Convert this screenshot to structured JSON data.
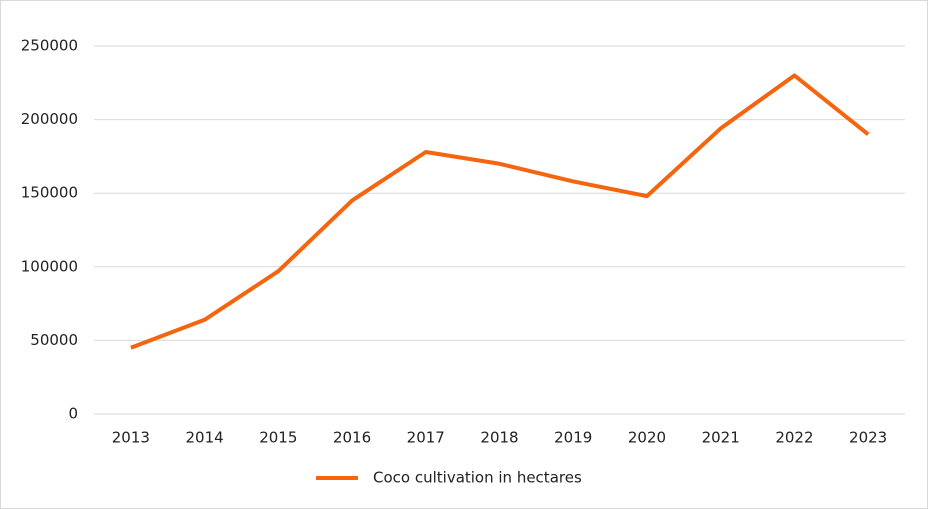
{
  "chart_data": {
    "type": "line",
    "categories": [
      "2013",
      "2014",
      "2015",
      "2016",
      "2017",
      "2018",
      "2019",
      "2020",
      "2021",
      "2022",
      "2023"
    ],
    "series": [
      {
        "name": "Coco cultivation in hectares",
        "color": "#f5650f",
        "values": [
          45000,
          64000,
          97000,
          145000,
          178000,
          170000,
          158000,
          148000,
          194000,
          230000,
          190000
        ]
      }
    ],
    "ylim": [
      0,
      250000
    ],
    "yticks": [
      0,
      50000,
      100000,
      150000,
      200000,
      250000
    ],
    "grid": true,
    "legend": "bottom"
  }
}
